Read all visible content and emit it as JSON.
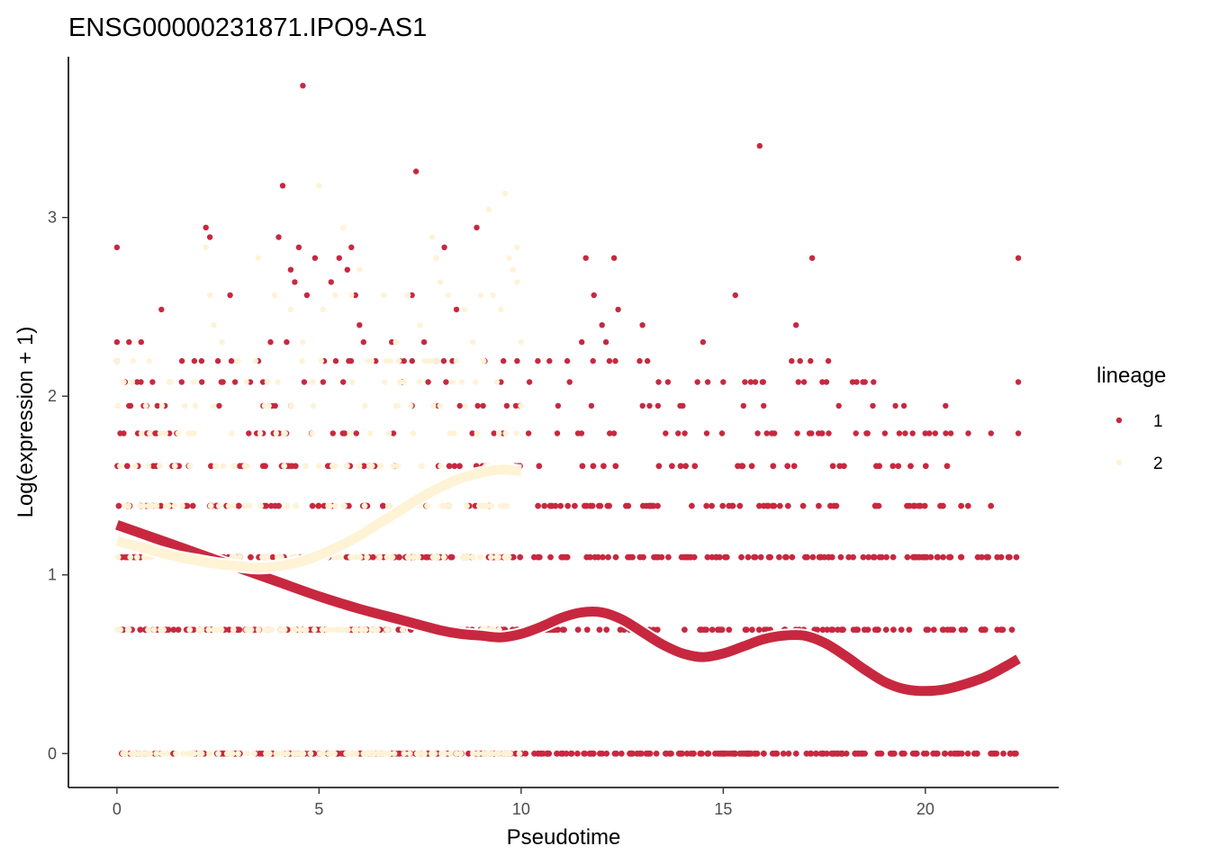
{
  "chart_data": {
    "type": "scatter",
    "title": "ENSG00000231871.IPO9-AS1",
    "xlabel": "Pseudotime",
    "ylabel": "Log(expression + 1)",
    "xlim": [
      -1.2,
      23.3
    ],
    "ylim": [
      -0.19,
      3.9
    ],
    "xticks": [
      0,
      5,
      10,
      15,
      20
    ],
    "yticks": [
      0,
      1,
      2,
      3
    ],
    "grid": false,
    "legend": {
      "title": "lineage",
      "position": "right",
      "entries": [
        "1",
        "2"
      ]
    },
    "colors": {
      "1": "#c8283f",
      "2": "#fff3d6"
    },
    "levels": [
      0,
      0.693,
      1.099,
      1.386,
      1.609,
      1.792,
      1.946,
      2.079,
      2.197,
      2.303,
      2.398,
      2.485,
      2.565,
      2.639,
      2.708,
      2.773,
      2.833,
      2.89,
      2.944,
      3.045,
      3.135,
      3.178,
      3.258,
      3.401,
      3.738
    ],
    "series": [
      {
        "name": "1",
        "band_ranges": [
          {
            "y": 0,
            "x_min": 0.0,
            "x_max": 22.3
          },
          {
            "y": 0.693,
            "x_min": 0.0,
            "x_max": 22.3
          },
          {
            "y": 1.099,
            "x_min": 0.0,
            "x_max": 22.3
          },
          {
            "y": 1.386,
            "x_min": 0.0,
            "x_max": 22.3
          },
          {
            "y": 1.609,
            "x_min": 0.0,
            "x_max": 21.0
          }
        ],
        "points": [
          [
            0.0,
            2.833
          ],
          [
            0.0,
            2.303
          ],
          [
            0.0,
            2.197
          ],
          [
            0.3,
            2.303
          ],
          [
            0.6,
            2.303
          ],
          [
            1.1,
            2.485
          ],
          [
            0.2,
            2.079
          ],
          [
            0.5,
            2.079
          ],
          [
            1.0,
            1.946
          ],
          [
            1.5,
            1.792
          ],
          [
            2.2,
            2.944
          ],
          [
            2.3,
            2.89
          ],
          [
            2.1,
            2.079
          ],
          [
            2.5,
            2.197
          ],
          [
            2.8,
            2.565
          ],
          [
            3.5,
            2.197
          ],
          [
            3.3,
            2.079
          ],
          [
            3.8,
            2.303
          ],
          [
            4.1,
            3.178
          ],
          [
            4.0,
            2.89
          ],
          [
            4.2,
            2.303
          ],
          [
            4.3,
            2.708
          ],
          [
            4.4,
            2.639
          ],
          [
            4.5,
            2.833
          ],
          [
            4.6,
            3.738
          ],
          [
            4.7,
            2.565
          ],
          [
            4.9,
            2.773
          ],
          [
            5.3,
            2.639
          ],
          [
            5.5,
            2.773
          ],
          [
            5.7,
            2.708
          ],
          [
            5.8,
            2.833
          ],
          [
            6.0,
            2.398
          ],
          [
            5.9,
            2.565
          ],
          [
            6.1,
            2.303
          ],
          [
            6.4,
            2.197
          ],
          [
            6.8,
            2.303
          ],
          [
            7.0,
            2.197
          ],
          [
            7.3,
            2.565
          ],
          [
            7.4,
            3.258
          ],
          [
            7.6,
            2.303
          ],
          [
            7.7,
            2.079
          ],
          [
            8.1,
            2.833
          ],
          [
            8.3,
            2.197
          ],
          [
            8.4,
            2.485
          ],
          [
            8.9,
            2.944
          ],
          [
            9.1,
            2.197
          ],
          [
            9.5,
            2.079
          ],
          [
            9.9,
            2.197
          ],
          [
            10.7,
            2.197
          ],
          [
            11.2,
            2.079
          ],
          [
            11.5,
            2.303
          ],
          [
            11.8,
            2.565
          ],
          [
            12.0,
            2.398
          ],
          [
            12.1,
            2.303
          ],
          [
            12.3,
            2.773
          ],
          [
            12.4,
            2.485
          ],
          [
            11.6,
            2.773
          ],
          [
            13.0,
            2.398
          ],
          [
            13.4,
            2.079
          ],
          [
            14.0,
            1.946
          ],
          [
            14.5,
            2.303
          ],
          [
            15.0,
            2.079
          ],
          [
            15.3,
            2.565
          ],
          [
            15.5,
            1.946
          ],
          [
            15.9,
            3.401
          ],
          [
            16.0,
            1.946
          ],
          [
            16.2,
            1.792
          ],
          [
            16.8,
            2.398
          ],
          [
            16.9,
            2.197
          ],
          [
            17.0,
            2.079
          ],
          [
            17.2,
            2.773
          ],
          [
            17.6,
            2.197
          ],
          [
            18.3,
            2.079
          ],
          [
            18.7,
            1.946
          ],
          [
            19.0,
            1.792
          ],
          [
            19.5,
            1.792
          ],
          [
            20.1,
            1.792
          ],
          [
            20.5,
            1.946
          ],
          [
            22.3,
            2.773
          ],
          [
            22.3,
            2.079
          ],
          [
            22.3,
            1.792
          ]
        ]
      },
      {
        "name": "2",
        "band_ranges": [
          {
            "y": 0,
            "x_min": 0.0,
            "x_max": 10.0
          },
          {
            "y": 0.693,
            "x_min": 0.0,
            "x_max": 10.0
          },
          {
            "y": 1.099,
            "x_min": 0.0,
            "x_max": 10.0
          },
          {
            "y": 1.386,
            "x_min": 0.0,
            "x_max": 10.0
          },
          {
            "y": 1.609,
            "x_min": 0.0,
            "x_max": 10.0
          }
        ],
        "points": [
          [
            0.0,
            2.197
          ],
          [
            0.4,
            2.197
          ],
          [
            0.8,
            2.197
          ],
          [
            1.3,
            2.079
          ],
          [
            1.9,
            2.079
          ],
          [
            2.2,
            2.833
          ],
          [
            2.3,
            2.565
          ],
          [
            2.4,
            2.398
          ],
          [
            2.6,
            2.303
          ],
          [
            2.9,
            2.197
          ],
          [
            3.2,
            2.079
          ],
          [
            3.5,
            2.773
          ],
          [
            3.9,
            2.565
          ],
          [
            4.3,
            2.485
          ],
          [
            4.6,
            2.303
          ],
          [
            5.0,
            3.178
          ],
          [
            5.1,
            2.485
          ],
          [
            5.4,
            2.565
          ],
          [
            5.6,
            2.944
          ],
          [
            5.8,
            2.565
          ],
          [
            6.0,
            2.708
          ],
          [
            6.3,
            2.197
          ],
          [
            6.6,
            2.565
          ],
          [
            6.9,
            2.303
          ],
          [
            7.2,
            2.565
          ],
          [
            7.5,
            2.398
          ],
          [
            7.8,
            2.89
          ],
          [
            7.9,
            2.773
          ],
          [
            8.0,
            2.639
          ],
          [
            8.2,
            2.565
          ],
          [
            8.6,
            2.485
          ],
          [
            8.8,
            2.303
          ],
          [
            9.2,
            3.045
          ],
          [
            9.3,
            2.565
          ],
          [
            9.4,
            2.079
          ],
          [
            9.7,
            2.773
          ],
          [
            9.8,
            2.708
          ],
          [
            9.6,
            3.135
          ],
          [
            9.9,
            2.639
          ],
          [
            9.5,
            2.485
          ],
          [
            10.0,
            2.303
          ],
          [
            9.9,
            2.833
          ],
          [
            9.0,
            2.565
          ],
          [
            8.4,
            2.197
          ]
        ]
      }
    ],
    "fit_lines": [
      {
        "name": "1",
        "x": [
          0,
          0.5,
          1,
          2,
          3,
          4,
          5,
          6,
          7,
          8,
          8.5,
          9,
          9.5,
          10,
          10.5,
          11,
          11.5,
          12,
          12.5,
          13,
          13.5,
          14,
          14.5,
          15,
          15.5,
          16,
          16.5,
          17,
          17.5,
          18,
          18.5,
          19,
          19.5,
          20,
          20.5,
          21,
          21.5,
          22,
          22.3
        ],
        "y": [
          1.28,
          1.24,
          1.2,
          1.12,
          1.04,
          0.96,
          0.88,
          0.81,
          0.75,
          0.69,
          0.67,
          0.66,
          0.65,
          0.67,
          0.71,
          0.76,
          0.79,
          0.79,
          0.75,
          0.68,
          0.61,
          0.56,
          0.54,
          0.56,
          0.6,
          0.64,
          0.66,
          0.66,
          0.62,
          0.55,
          0.47,
          0.4,
          0.36,
          0.35,
          0.36,
          0.39,
          0.43,
          0.49,
          0.53
        ]
      },
      {
        "name": "2",
        "x": [
          0,
          0.5,
          1,
          1.5,
          2,
          2.5,
          3,
          3.5,
          4,
          4.5,
          5,
          5.5,
          6,
          6.5,
          7,
          7.5,
          8,
          8.5,
          9,
          9.5,
          10
        ],
        "y": [
          1.19,
          1.16,
          1.13,
          1.1,
          1.08,
          1.06,
          1.05,
          1.04,
          1.05,
          1.07,
          1.11,
          1.16,
          1.22,
          1.29,
          1.36,
          1.43,
          1.49,
          1.54,
          1.57,
          1.59,
          1.58
        ]
      }
    ]
  }
}
